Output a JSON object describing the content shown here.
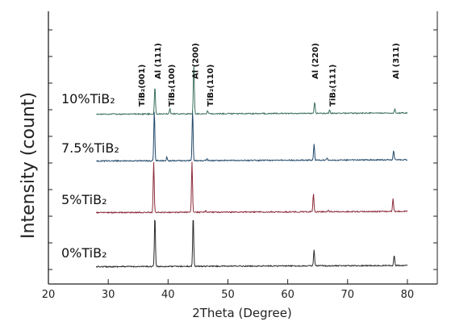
{
  "chart_data": {
    "type": "line",
    "title": "",
    "xlabel": "2Theta (Degree)",
    "ylabel": "Intensity (count)",
    "xlim": [
      20,
      85
    ],
    "xticks": [
      20,
      30,
      40,
      50,
      60,
      70,
      80
    ],
    "yticks_labeled": false,
    "grid": false,
    "legend": "none",
    "series": [
      {
        "name": "0%TiB2",
        "color": "#2b2b2b",
        "x_range": [
          28,
          80
        ],
        "peaks": [
          {
            "x": 37.8,
            "y": 15
          },
          {
            "x": 44.2,
            "y": 15
          },
          {
            "x": 64.4,
            "y": 4.7
          },
          {
            "x": 77.8,
            "y": 3.1
          }
        ]
      },
      {
        "name": "5%TiB2",
        "color": "#8b2b3a",
        "x_range": [
          28,
          80
        ],
        "peaks": [
          {
            "x": 37.6,
            "y": 15
          },
          {
            "x": 44.0,
            "y": 15
          },
          {
            "x": 46.3,
            "y": 0.6
          },
          {
            "x": 64.3,
            "y": 5.3
          },
          {
            "x": 66.8,
            "y": 0.5
          },
          {
            "x": 77.6,
            "y": 3.9
          }
        ]
      },
      {
        "name": "7.5%TiB2",
        "color": "#234a6b",
        "x_range": [
          28,
          80
        ],
        "peaks": [
          {
            "x": 37.7,
            "y": 15
          },
          {
            "x": 39.8,
            "y": 1.1
          },
          {
            "x": 44.1,
            "y": 15
          },
          {
            "x": 46.5,
            "y": 0.5
          },
          {
            "x": 64.4,
            "y": 4.7
          },
          {
            "x": 66.6,
            "y": 0.6
          },
          {
            "x": 77.7,
            "y": 2.8
          }
        ]
      },
      {
        "name": "10%TiB2",
        "color": "#3d7060",
        "x_range": [
          28,
          80
        ],
        "peaks": [
          {
            "x": 37.8,
            "y": 8.2
          },
          {
            "x": 40.3,
            "y": 1.6
          },
          {
            "x": 44.3,
            "y": 15
          },
          {
            "x": 46.6,
            "y": 1.0
          },
          {
            "x": 64.5,
            "y": 3.5
          },
          {
            "x": 67.0,
            "y": 1.0
          },
          {
            "x": 77.9,
            "y": 1.3
          }
        ]
      }
    ],
    "annotations": [
      {
        "text": "TiB₂(001)",
        "x": 35.5
      },
      {
        "text": "Al (111)",
        "x": 38.2
      },
      {
        "text": "TiB₂(100)",
        "x": 40.5
      },
      {
        "text": "Al (200)",
        "x": 44.5
      },
      {
        "text": "TiB₂(110)",
        "x": 47.0
      },
      {
        "text": "Al (220)",
        "x": 64.5
      },
      {
        "text": "TiB₂(111)",
        "x": 67.4
      },
      {
        "text": "Al (311)",
        "x": 78.0
      }
    ]
  },
  "series_labels": [
    "0%TiB₂",
    "5%TiB₂",
    "7.5%TiB₂",
    "10%TiB₂"
  ]
}
